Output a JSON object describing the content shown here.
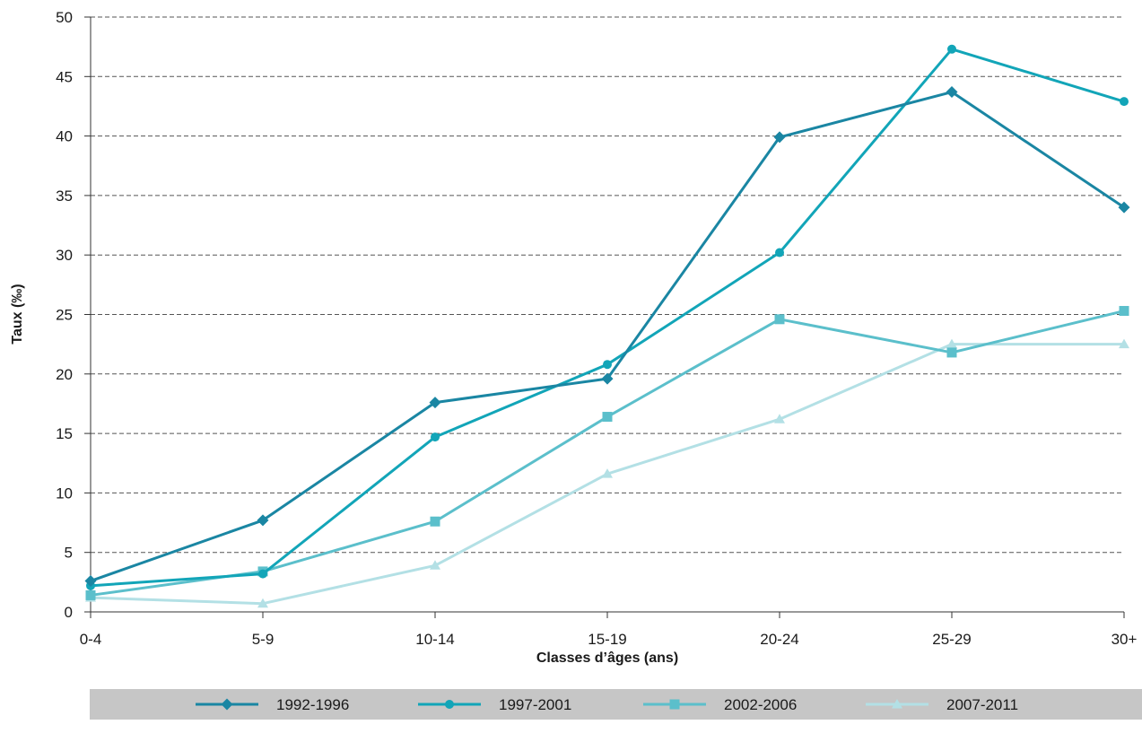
{
  "chart_data": {
    "type": "line",
    "xlabel": "Classes d’âges (ans)",
    "ylabel": "Taux (‰)",
    "categories": [
      "0-4",
      "5-9",
      "10-14",
      "15-19",
      "20-24",
      "25-29",
      "30+"
    ],
    "ylim": [
      0,
      50
    ],
    "yticks": [
      0,
      5,
      10,
      15,
      20,
      25,
      30,
      35,
      40,
      45,
      50
    ],
    "grid": "horizontal-dashed",
    "legend_position": "bottom",
    "series": [
      {
        "name": "1992-1996",
        "marker": "diamond",
        "color": "#1a86a3",
        "values": [
          2.6,
          7.7,
          17.6,
          19.6,
          39.9,
          43.7,
          34.0
        ]
      },
      {
        "name": "1997-2001",
        "marker": "circle",
        "color": "#12a5b8",
        "values": [
          2.2,
          3.2,
          14.7,
          20.8,
          30.2,
          47.3,
          42.9
        ]
      },
      {
        "name": "2002-2006",
        "marker": "square",
        "color": "#5bbfcb",
        "values": [
          1.4,
          3.4,
          7.6,
          16.4,
          24.6,
          21.8,
          25.3
        ]
      },
      {
        "name": "2007-2011",
        "marker": "triangle",
        "color": "#b3e0e5",
        "values": [
          1.2,
          0.7,
          3.9,
          11.6,
          16.2,
          22.5,
          22.5
        ]
      }
    ]
  }
}
